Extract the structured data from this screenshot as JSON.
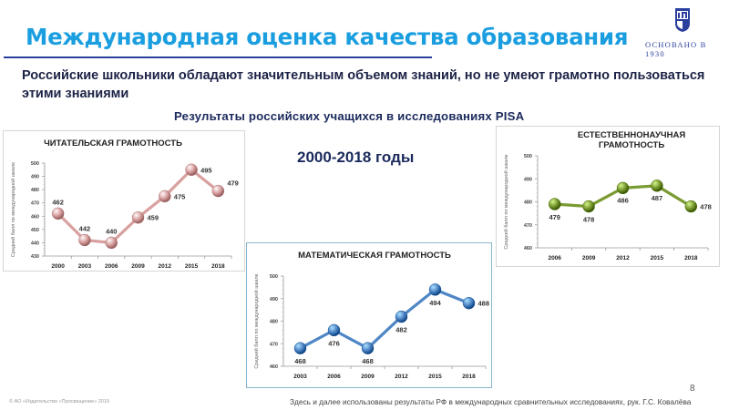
{
  "header": {
    "title": "Международная оценка качества образования",
    "founded": "ОСНОВАНО В 1930",
    "logo": "publisher-shield-logo"
  },
  "subtitle": "Российские школьники обладают значительным объемом знаний, но не умеют грамотно пользоваться этими знаниями",
  "section_heading": "Результаты российских учащихся в исследованиях PISA",
  "period": "2000-2018 годы",
  "colors": {
    "title": "#1a9ee0",
    "rule": "#2b3f9e",
    "reading": "#d9a0a0",
    "science": "#7a9a32",
    "math": "#4f86c6"
  },
  "footer": {
    "page_number": "8",
    "copyright": "© АО «Издательство «Просвещение» 2019",
    "footnote": "Здесь и далее использованы результаты РФ в международных сравнительных исследованиях, рук. Г.С. Ковалёва"
  },
  "chart_data": [
    {
      "id": "reading",
      "type": "line",
      "title": "ЧИТАТЕЛЬСКАЯ ГРАМОТНОСТЬ",
      "xlabel": "",
      "ylabel": "Средний балл по международной шкале",
      "categories": [
        "2000",
        "2003",
        "2006",
        "2009",
        "2012",
        "2015",
        "2018"
      ],
      "values": [
        462,
        442,
        440,
        459,
        475,
        495,
        479
      ],
      "ylim": [
        430,
        500
      ],
      "yticks": [
        430,
        440,
        450,
        460,
        470,
        480,
        490,
        500
      ],
      "grid": false,
      "legend": "none",
      "color": "#d9a0a0"
    },
    {
      "id": "science",
      "type": "line",
      "title": "ЕСТЕСТВЕННОНАУЧНАЯ ГРАМОТНОСТЬ",
      "xlabel": "",
      "ylabel": "Средний балл по международной шкале",
      "categories": [
        "2006",
        "2009",
        "2012",
        "2015",
        "2018"
      ],
      "values": [
        479,
        478,
        486,
        487,
        478
      ],
      "ylim": [
        460,
        500
      ],
      "yticks": [
        460,
        470,
        480,
        490,
        500
      ],
      "grid": false,
      "legend": "none",
      "color": "#7a9a32"
    },
    {
      "id": "math",
      "type": "line",
      "title": "МАТЕМАТИЧЕСКАЯ ГРАМОТНОСТЬ",
      "xlabel": "",
      "ylabel": "Средний балл по международной шкале",
      "categories": [
        "2003",
        "2006",
        "2009",
        "2012",
        "2015",
        "2018"
      ],
      "values": [
        468,
        476,
        468,
        482,
        494,
        488
      ],
      "ylim": [
        460,
        500
      ],
      "yticks": [
        460,
        470,
        480,
        490,
        500
      ],
      "grid": false,
      "legend": "none",
      "color": "#4f86c6"
    }
  ]
}
